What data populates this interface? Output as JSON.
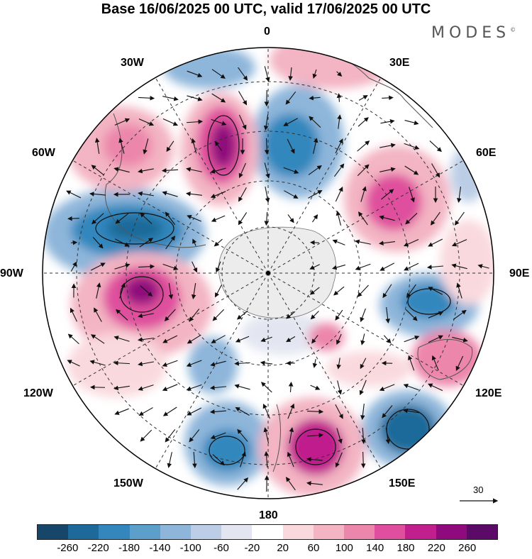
{
  "title": "Base 16/06/2025 00 UTC, valid 17/06/2025 00 UTC",
  "brand": "MODES",
  "brand_mark": "©",
  "longitude_labels": {
    "lon_0": "0",
    "lon_30e": "30E",
    "lon_60e": "60E",
    "lon_90e": "90E",
    "lon_120e": "120E",
    "lon_150e": "150E",
    "lon_180": "180",
    "lon_150w": "150W",
    "lon_120w": "120W",
    "lon_90w": "90W",
    "lon_60w": "60W",
    "lon_30w": "30W"
  },
  "reference_vector": {
    "label": "30"
  },
  "colorbar": {
    "colors": [
      "#16466a",
      "#1d6a9a",
      "#3387bd",
      "#5c9fcb",
      "#8eb6da",
      "#bccde6",
      "#e3e6f1",
      "#ffffff",
      "#f9d9de",
      "#f3b4c3",
      "#ec86aa",
      "#df4f9d",
      "#c01f8d",
      "#8f0a7c",
      "#5c0a67"
    ],
    "tick_labels": [
      "-260",
      "-220",
      "-180",
      "-140",
      "-100",
      "-60",
      "-20",
      "20",
      "60",
      "100",
      "140",
      "180",
      "220",
      "260"
    ]
  }
}
